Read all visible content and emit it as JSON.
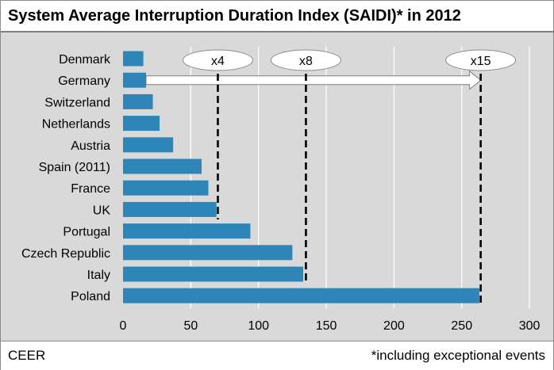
{
  "header": {
    "title": "System Average Interruption Duration Index (SAIDI)* in 2012"
  },
  "footer": {
    "source": "CEER",
    "note": "*including exceptional events"
  },
  "chart_data": {
    "type": "bar",
    "orientation": "horizontal",
    "title": "System Average Interruption Duration Index (SAIDI)* in 2012",
    "categories": [
      "Denmark",
      "Germany",
      "Switzerland",
      "Netherlands",
      "Austria",
      "Spain (2011)",
      "France",
      "UK",
      "Portugal",
      "Czech Republic",
      "Italy",
      "Poland"
    ],
    "values": [
      15,
      17,
      22,
      27,
      37,
      58,
      63,
      69,
      94,
      125,
      133,
      263
    ],
    "xlim": [
      0,
      300
    ],
    "x_ticks": [
      0,
      50,
      100,
      150,
      200,
      250,
      300
    ],
    "grid": true,
    "bar_color": "#2e86b8",
    "multiplier_lines": [
      {
        "label": "x4",
        "value": 70
      },
      {
        "label": "x8",
        "value": 135
      },
      {
        "label": "x15",
        "value": 264
      }
    ],
    "arrow": {
      "from": 17,
      "to": 264
    }
  }
}
